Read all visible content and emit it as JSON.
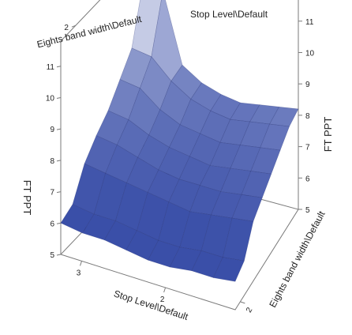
{
  "chart_data": {
    "type": "surface",
    "axes": {
      "top_x_title": "Stop Level\\Default",
      "top_x_ticks": [
        "3",
        "2"
      ],
      "bottom_x_title": "Stop Level\\Default",
      "bottom_x_ticks": [
        "3",
        "2"
      ],
      "top_y_title": "Eights band width\\Default",
      "top_y_ticks": [
        "2"
      ],
      "right_y_title": "Eights band width\\Default",
      "right_y_ticks": [
        "2"
      ],
      "left_z_title": "FT PPT",
      "right_z_title": "FT PPT",
      "z_ticks": [
        "5",
        "6",
        "7",
        "8",
        "9",
        "10",
        "11"
      ],
      "zlim": [
        5,
        11.8
      ]
    },
    "surface": {
      "x_count": 9,
      "y_count": 8,
      "z": [
        [
          11.0,
          9.2,
          8.6,
          8.0,
          7.6,
          7.1,
          6.2,
          6.0
        ],
        [
          10.8,
          9.1,
          8.5,
          7.9,
          7.5,
          7.0,
          6.1,
          5.9
        ],
        [
          8.6,
          8.5,
          8.0,
          7.6,
          7.3,
          6.9,
          6.1,
          5.9
        ],
        [
          8.2,
          8.1,
          7.7,
          7.4,
          7.1,
          6.8,
          6.0,
          5.8
        ],
        [
          8.0,
          7.9,
          7.6,
          7.3,
          7.0,
          6.7,
          5.9,
          5.7
        ],
        [
          7.9,
          7.8,
          7.5,
          7.2,
          7.0,
          6.6,
          5.9,
          5.7
        ],
        [
          8.0,
          7.9,
          7.6,
          7.3,
          7.0,
          6.7,
          6.0,
          5.8
        ],
        [
          8.1,
          8.0,
          7.7,
          7.4,
          7.1,
          6.8,
          6.0,
          5.8
        ],
        [
          8.2,
          8.1,
          7.8,
          7.5,
          7.2,
          6.9,
          6.1,
          5.9
        ]
      ],
      "color_low": "#3a4fa8",
      "color_high": "#ffffff"
    }
  }
}
